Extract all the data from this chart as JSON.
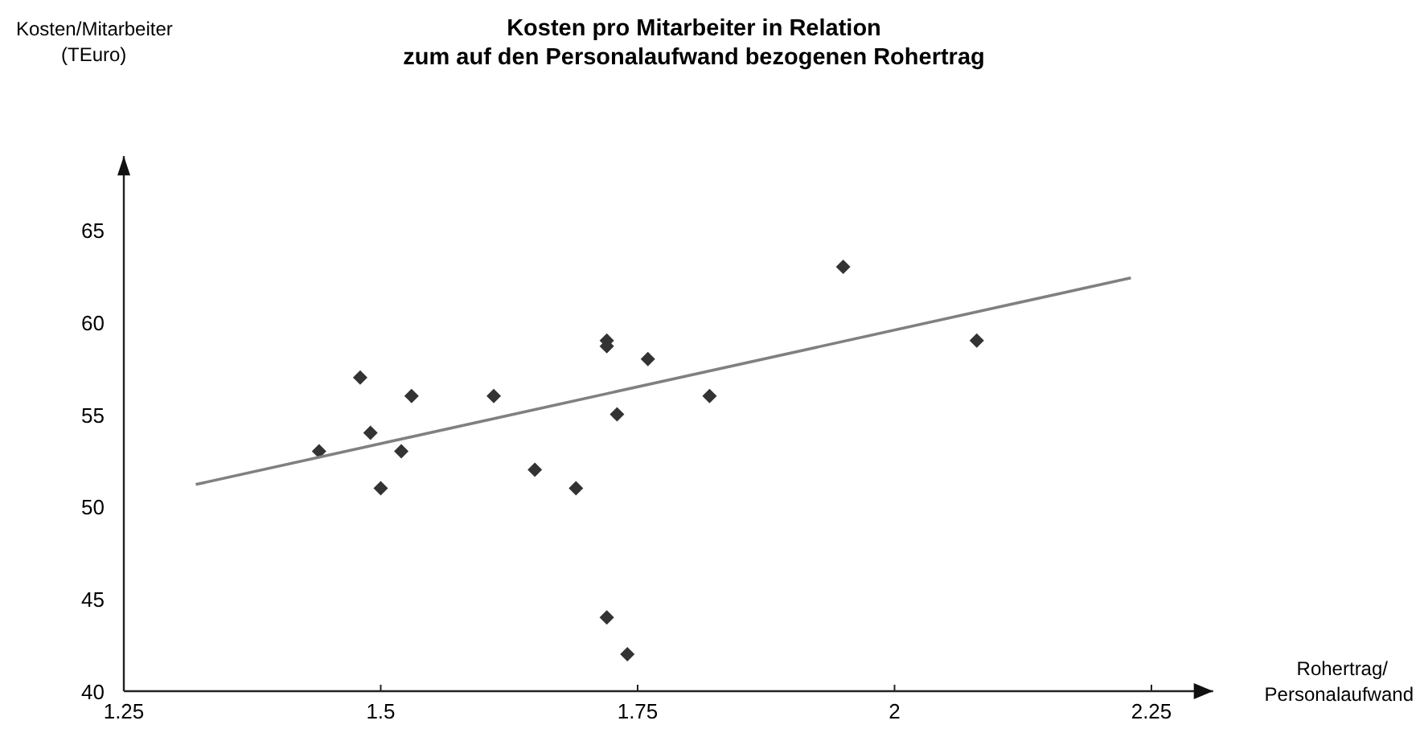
{
  "chart_data": {
    "type": "scatter",
    "title": "Kosten pro Mitarbeiter in Relation\nzum auf den Personalaufwand bezogenen Rohertrag",
    "xlabel": "Rohertrag/\nPersonalaufwand",
    "ylabel": "Kosten/Mitarbeiter\n(TEuro)",
    "xlim": [
      1.25,
      2.31
    ],
    "ylim": [
      40,
      69
    ],
    "xticks": [
      1.25,
      1.5,
      1.75,
      2,
      2.25
    ],
    "yticks": [
      40,
      45,
      50,
      55,
      60,
      65
    ],
    "grid": false,
    "marker": "diamond",
    "series": [
      {
        "color": "#333333",
        "x": [
          1.44,
          1.48,
          1.49,
          1.5,
          1.52,
          1.53,
          1.61,
          1.65,
          1.69,
          1.72,
          1.72,
          1.73,
          1.76,
          1.82,
          1.72,
          1.74,
          1.95,
          2.08
        ],
        "values": [
          53,
          57,
          54,
          51,
          53,
          56,
          56,
          52,
          51,
          59,
          58.7,
          55,
          58,
          56,
          44,
          42,
          63,
          59
        ]
      },
      {
        "type": "line",
        "color": "#808080",
        "line_style": "solid",
        "marker": "none",
        "x": [
          1.32,
          2.23
        ],
        "values": [
          51.2,
          62.4
        ]
      }
    ]
  }
}
